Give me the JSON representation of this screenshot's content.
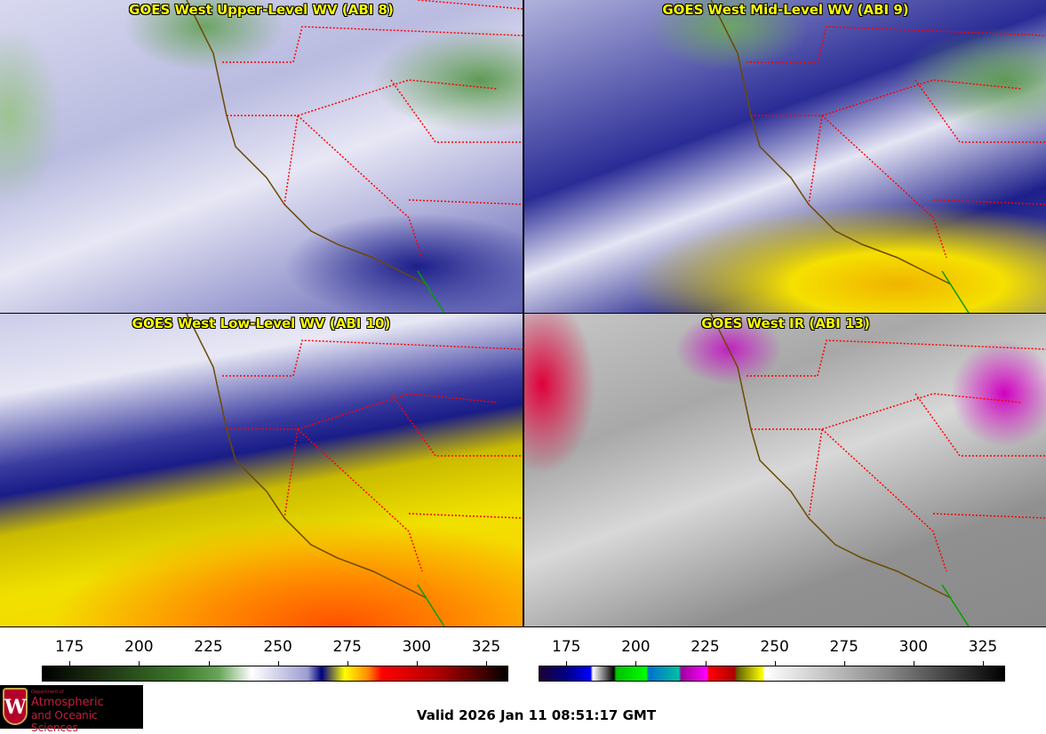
{
  "panels": [
    {
      "title": "GOES West Upper-Level WV (ABI 8)"
    },
    {
      "title": "GOES West Mid-Level WV (ABI 9)"
    },
    {
      "title": "GOES West Low-Level WV (ABI 10)"
    },
    {
      "title": "GOES West IR (ABI 13)"
    }
  ],
  "colorbars": [
    {
      "name": "water-vapor",
      "ticks": [
        "175",
        "200",
        "225",
        "250",
        "275",
        "300",
        "325"
      ],
      "range": [
        165,
        333
      ]
    },
    {
      "name": "infrared",
      "ticks": [
        "175",
        "200",
        "225",
        "250",
        "275",
        "300",
        "325"
      ],
      "range": [
        165,
        333
      ]
    }
  ],
  "logo": {
    "line1": "Department of",
    "line2": "Atmospheric",
    "line3": "and Oceanic Sciences",
    "crest": "W"
  },
  "footer": {
    "valid": "Valid 2026 Jan 11 08:51:17 GMT"
  },
  "colors": {
    "title": "#ffff00",
    "state_lines": "#ff0000",
    "coastline": "#6b4a00",
    "mexico_border": "#00a000"
  }
}
